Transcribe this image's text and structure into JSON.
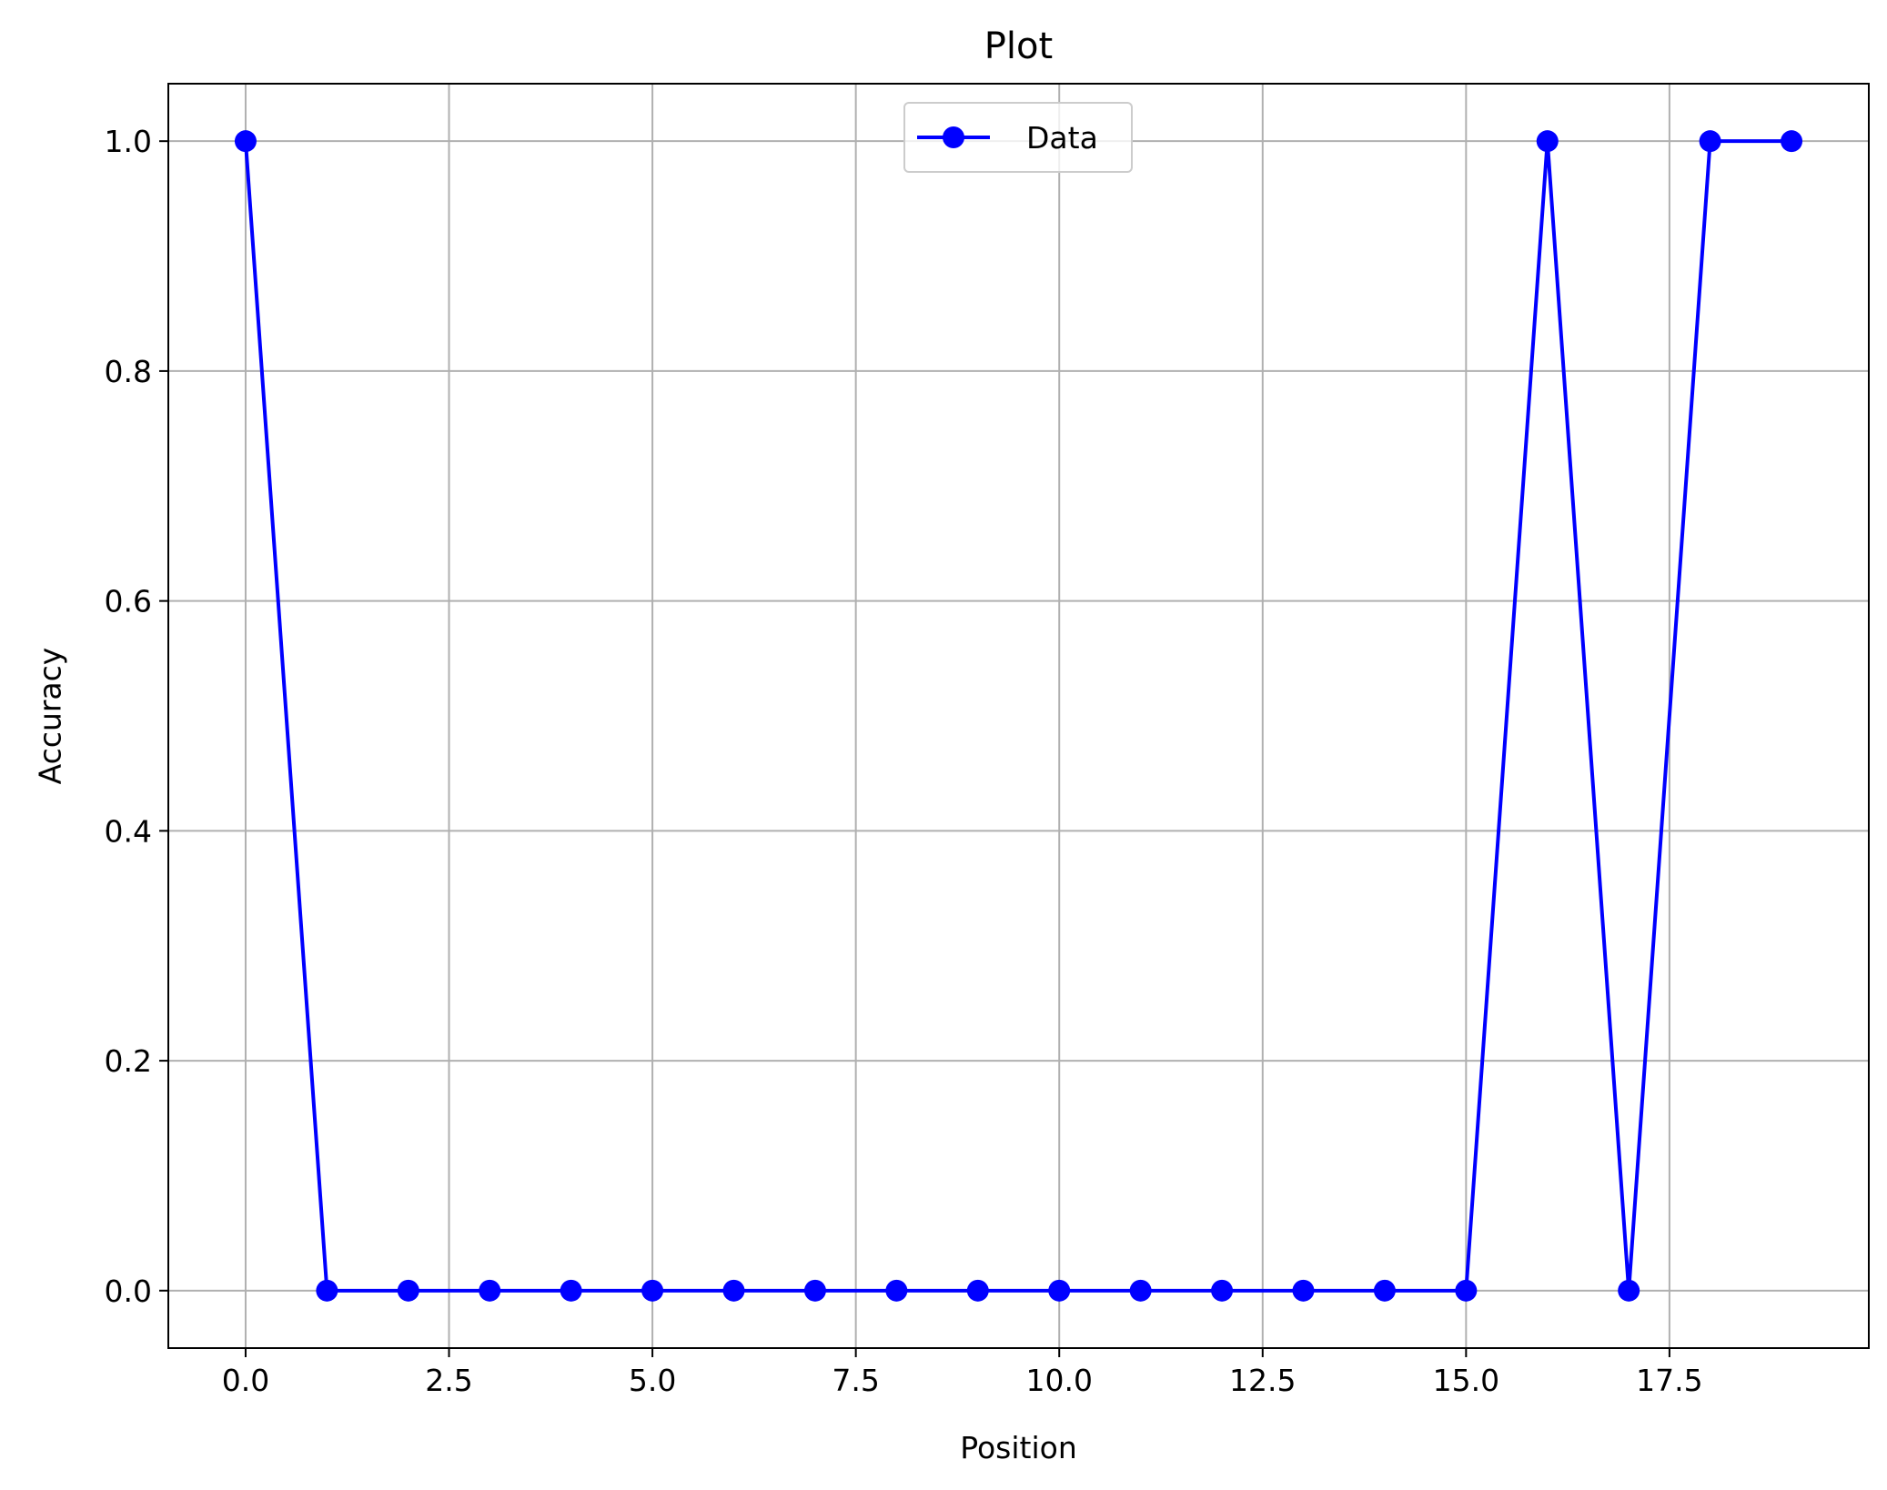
{
  "chart_data": {
    "type": "line",
    "title": "Plot",
    "xlabel": "Position",
    "ylabel": "Accuracy",
    "xlim": [
      -0.95,
      19.95
    ],
    "ylim": [
      -0.05,
      1.05
    ],
    "xticks": [
      0.0,
      2.5,
      5.0,
      7.5,
      10.0,
      12.5,
      15.0,
      17.5
    ],
    "xtick_labels": [
      "0.0",
      "2.5",
      "5.0",
      "7.5",
      "10.0",
      "12.5",
      "15.0",
      "17.5"
    ],
    "yticks": [
      0.0,
      0.2,
      0.4,
      0.6,
      0.8,
      1.0
    ],
    "ytick_labels": [
      "0.0",
      "0.2",
      "0.4",
      "0.6",
      "0.8",
      "1.0"
    ],
    "grid": true,
    "legend_position": "upper center",
    "series": [
      {
        "name": "Data",
        "color": "#0000ff",
        "marker": "circle",
        "x": [
          0,
          1,
          2,
          3,
          4,
          5,
          6,
          7,
          8,
          9,
          10,
          11,
          12,
          13,
          14,
          15,
          16,
          17,
          18,
          19
        ],
        "y": [
          1,
          0,
          0,
          0,
          0,
          0,
          0,
          0,
          0,
          0,
          0,
          0,
          0,
          0,
          0,
          0,
          1,
          0,
          1,
          1
        ]
      }
    ]
  }
}
